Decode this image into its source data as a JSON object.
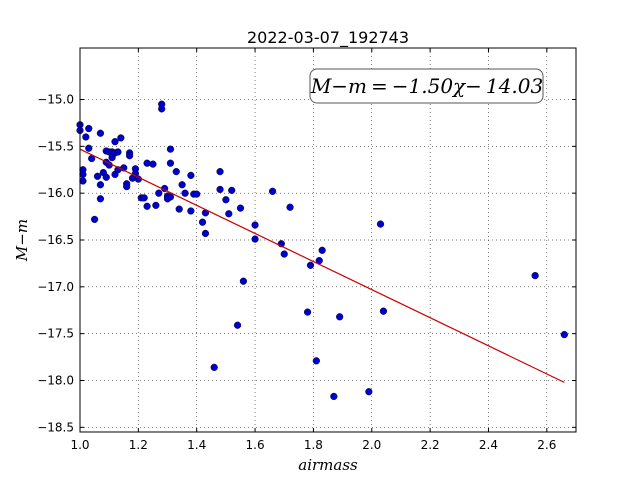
{
  "chart_data": {
    "type": "scatter",
    "title": "2022-03-07_192743",
    "xlabel": "airmass",
    "ylabel": "M−m",
    "xlim": [
      1.0,
      2.7
    ],
    "ylim": [
      -18.55,
      -14.45
    ],
    "y_inverted": true,
    "grid": true,
    "grid_style": "dotted",
    "x_ticks": [
      1.0,
      1.2,
      1.4,
      1.6,
      1.8,
      2.0,
      2.2,
      2.4,
      2.6
    ],
    "x_tick_labels": [
      "1.0",
      "1.2",
      "1.4",
      "1.6",
      "1.8",
      "2.0",
      "2.2",
      "2.4",
      "2.6"
    ],
    "y_ticks": [
      -15.0,
      -15.5,
      -16.0,
      -16.5,
      -17.0,
      -17.5,
      -18.0,
      -18.5
    ],
    "y_tick_labels": [
      "−15.0",
      "−15.5",
      "−16.0",
      "−16.5",
      "−17.0",
      "−17.5",
      "−18.0",
      "−18.5"
    ],
    "annotation": "M−m = −1.50χ− 14.03",
    "colors": {
      "points": "#0000cc",
      "fit": "#cc0000"
    },
    "series": [
      {
        "type": "scatter",
        "x": [
          1.0,
          1.0,
          1.01,
          1.01,
          1.01,
          1.02,
          1.03,
          1.03,
          1.04,
          1.05,
          1.06,
          1.07,
          1.07,
          1.07,
          1.08,
          1.09,
          1.09,
          1.09,
          1.1,
          1.1,
          1.11,
          1.11,
          1.12,
          1.12,
          1.12,
          1.13,
          1.13,
          1.14,
          1.15,
          1.16,
          1.16,
          1.17,
          1.17,
          1.18,
          1.19,
          1.19,
          1.2,
          1.21,
          1.22,
          1.23,
          1.23,
          1.25,
          1.26,
          1.27,
          1.28,
          1.28,
          1.29,
          1.3,
          1.3,
          1.31,
          1.31,
          1.31,
          1.33,
          1.34,
          1.35,
          1.36,
          1.38,
          1.38,
          1.39,
          1.4,
          1.42,
          1.43,
          1.43,
          1.46,
          1.48,
          1.48,
          1.5,
          1.51,
          1.52,
          1.54,
          1.55,
          1.56,
          1.6,
          1.6,
          1.66,
          1.69,
          1.7,
          1.72,
          1.78,
          1.79,
          1.81,
          1.82,
          1.83,
          1.87,
          1.89,
          1.99,
          2.03,
          2.04,
          2.56,
          2.66
        ],
        "y": [
          -15.27,
          -15.33,
          -15.75,
          -15.8,
          -15.87,
          -15.4,
          -15.31,
          -15.52,
          -15.63,
          -16.28,
          -15.82,
          -16.06,
          -15.36,
          -15.91,
          -15.78,
          -15.55,
          -15.67,
          -15.83,
          -15.56,
          -15.7,
          -15.56,
          -15.62,
          -15.45,
          -15.57,
          -15.8,
          -15.56,
          -15.75,
          -15.41,
          -15.73,
          -15.9,
          -15.93,
          -15.57,
          -15.6,
          -15.84,
          -15.74,
          -15.79,
          -15.85,
          -16.05,
          -16.05,
          -15.68,
          -16.14,
          -15.69,
          -16.13,
          -16.0,
          -15.05,
          -15.1,
          -15.95,
          -16.03,
          -16.06,
          -15.68,
          -15.53,
          -16.04,
          -15.77,
          -16.17,
          -15.91,
          -16.0,
          -15.81,
          -16.19,
          -16.01,
          -16.01,
          -16.31,
          -16.21,
          -16.43,
          -17.86,
          -15.96,
          -15.77,
          -16.07,
          -16.22,
          -15.97,
          -17.41,
          -16.16,
          -16.94,
          -16.34,
          -16.49,
          -15.98,
          -16.54,
          -16.65,
          -16.15,
          -17.27,
          -16.77,
          -17.79,
          -16.72,
          -16.61,
          -18.17,
          -17.32,
          -18.12,
          -16.33,
          -17.26,
          -16.88,
          -17.51
        ]
      },
      {
        "type": "line",
        "name": "fit",
        "x": [
          1.0,
          2.66
        ],
        "y": [
          -15.53,
          -18.02
        ]
      }
    ]
  }
}
